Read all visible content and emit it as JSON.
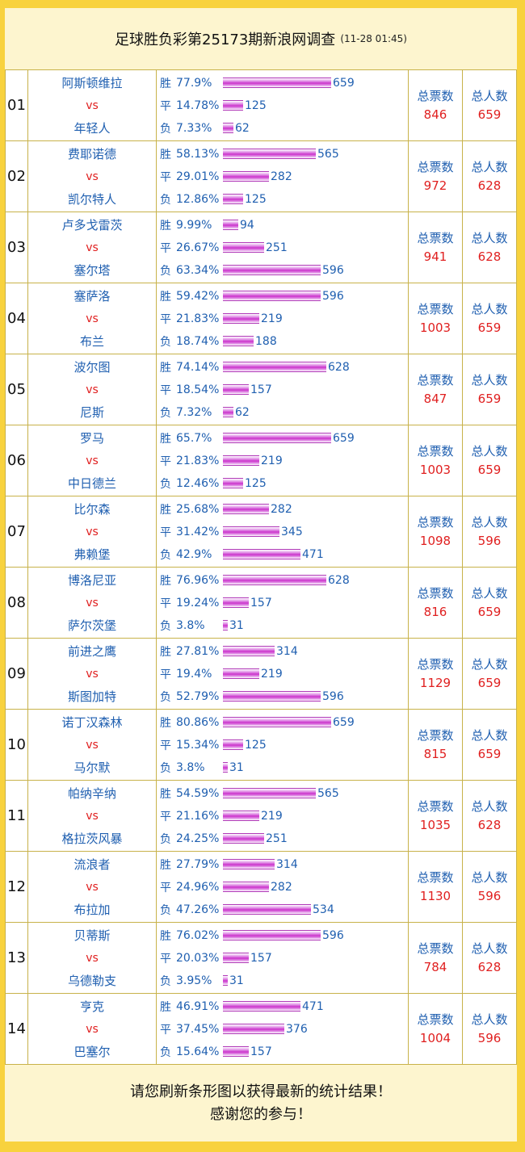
{
  "header": {
    "title": "足球胜负彩第25173期新浪网调查",
    "date": "(11-28 01:45)"
  },
  "labels": {
    "win": "胜",
    "draw": "平",
    "lose": "负",
    "vs": "vs",
    "total_votes": "总票数",
    "total_people": "总人数"
  },
  "matches": [
    {
      "num": "01",
      "home": "阿斯顿维拉",
      "away": "年轻人",
      "win": {
        "pct": "77.9%",
        "count": "659"
      },
      "draw": {
        "pct": "14.78%",
        "count": "125"
      },
      "lose": {
        "pct": "7.33%",
        "count": "62"
      },
      "total_votes": "846",
      "total_people": "659"
    },
    {
      "num": "02",
      "home": "费耶诺德",
      "away": "凯尔特人",
      "win": {
        "pct": "58.13%",
        "count": "565"
      },
      "draw": {
        "pct": "29.01%",
        "count": "282"
      },
      "lose": {
        "pct": "12.86%",
        "count": "125"
      },
      "total_votes": "972",
      "total_people": "628"
    },
    {
      "num": "03",
      "home": "卢多戈雷茨",
      "away": "塞尔塔",
      "win": {
        "pct": "9.99%",
        "count": "94"
      },
      "draw": {
        "pct": "26.67%",
        "count": "251"
      },
      "lose": {
        "pct": "63.34%",
        "count": "596"
      },
      "total_votes": "941",
      "total_people": "628"
    },
    {
      "num": "04",
      "home": "塞萨洛",
      "away": "布兰",
      "win": {
        "pct": "59.42%",
        "count": "596"
      },
      "draw": {
        "pct": "21.83%",
        "count": "219"
      },
      "lose": {
        "pct": "18.74%",
        "count": "188"
      },
      "total_votes": "1003",
      "total_people": "659"
    },
    {
      "num": "05",
      "home": "波尔图",
      "away": "尼斯",
      "win": {
        "pct": "74.14%",
        "count": "628"
      },
      "draw": {
        "pct": "18.54%",
        "count": "157"
      },
      "lose": {
        "pct": "7.32%",
        "count": "62"
      },
      "total_votes": "847",
      "total_people": "659"
    },
    {
      "num": "06",
      "home": "罗马",
      "away": "中日德兰",
      "win": {
        "pct": "65.7%",
        "count": "659"
      },
      "draw": {
        "pct": "21.83%",
        "count": "219"
      },
      "lose": {
        "pct": "12.46%",
        "count": "125"
      },
      "total_votes": "1003",
      "total_people": "659"
    },
    {
      "num": "07",
      "home": "比尔森",
      "away": "弗赖堡",
      "win": {
        "pct": "25.68%",
        "count": "282"
      },
      "draw": {
        "pct": "31.42%",
        "count": "345"
      },
      "lose": {
        "pct": "42.9%",
        "count": "471"
      },
      "total_votes": "1098",
      "total_people": "596"
    },
    {
      "num": "08",
      "home": "博洛尼亚",
      "away": "萨尔茨堡",
      "win": {
        "pct": "76.96%",
        "count": "628"
      },
      "draw": {
        "pct": "19.24%",
        "count": "157"
      },
      "lose": {
        "pct": "3.8%",
        "count": "31"
      },
      "total_votes": "816",
      "total_people": "659"
    },
    {
      "num": "09",
      "home": "前进之鹰",
      "away": "斯图加特",
      "win": {
        "pct": "27.81%",
        "count": "314"
      },
      "draw": {
        "pct": "19.4%",
        "count": "219"
      },
      "lose": {
        "pct": "52.79%",
        "count": "596"
      },
      "total_votes": "1129",
      "total_people": "659"
    },
    {
      "num": "10",
      "home": "诺丁汉森林",
      "away": "马尔默",
      "win": {
        "pct": "80.86%",
        "count": "659"
      },
      "draw": {
        "pct": "15.34%",
        "count": "125"
      },
      "lose": {
        "pct": "3.8%",
        "count": "31"
      },
      "total_votes": "815",
      "total_people": "659"
    },
    {
      "num": "11",
      "home": "帕纳辛纳",
      "away": "格拉茨风暴",
      "win": {
        "pct": "54.59%",
        "count": "565"
      },
      "draw": {
        "pct": "21.16%",
        "count": "219"
      },
      "lose": {
        "pct": "24.25%",
        "count": "251"
      },
      "total_votes": "1035",
      "total_people": "628"
    },
    {
      "num": "12",
      "home": "流浪者",
      "away": "布拉加",
      "win": {
        "pct": "27.79%",
        "count": "314"
      },
      "draw": {
        "pct": "24.96%",
        "count": "282"
      },
      "lose": {
        "pct": "47.26%",
        "count": "534"
      },
      "total_votes": "1130",
      "total_people": "596"
    },
    {
      "num": "13",
      "home": "贝蒂斯",
      "away": "乌德勒支",
      "win": {
        "pct": "76.02%",
        "count": "596"
      },
      "draw": {
        "pct": "20.03%",
        "count": "157"
      },
      "lose": {
        "pct": "3.95%",
        "count": "31"
      },
      "total_votes": "784",
      "total_people": "628"
    },
    {
      "num": "14",
      "home": "亨克",
      "away": "巴塞尔",
      "win": {
        "pct": "46.91%",
        "count": "471"
      },
      "draw": {
        "pct": "37.45%",
        "count": "376"
      },
      "lose": {
        "pct": "15.64%",
        "count": "157"
      },
      "total_votes": "1004",
      "total_people": "596"
    }
  ],
  "footer": {
    "line1": "请您刷新条形图以获得最新的统计结果！",
    "line2": "感谢您的参与！"
  },
  "colors": {
    "background": "#f8d23e",
    "panel": "#fdf5cf",
    "team_text": "#1f5fb0",
    "accent_red": "#e02020",
    "bar": "#cc33cc"
  }
}
